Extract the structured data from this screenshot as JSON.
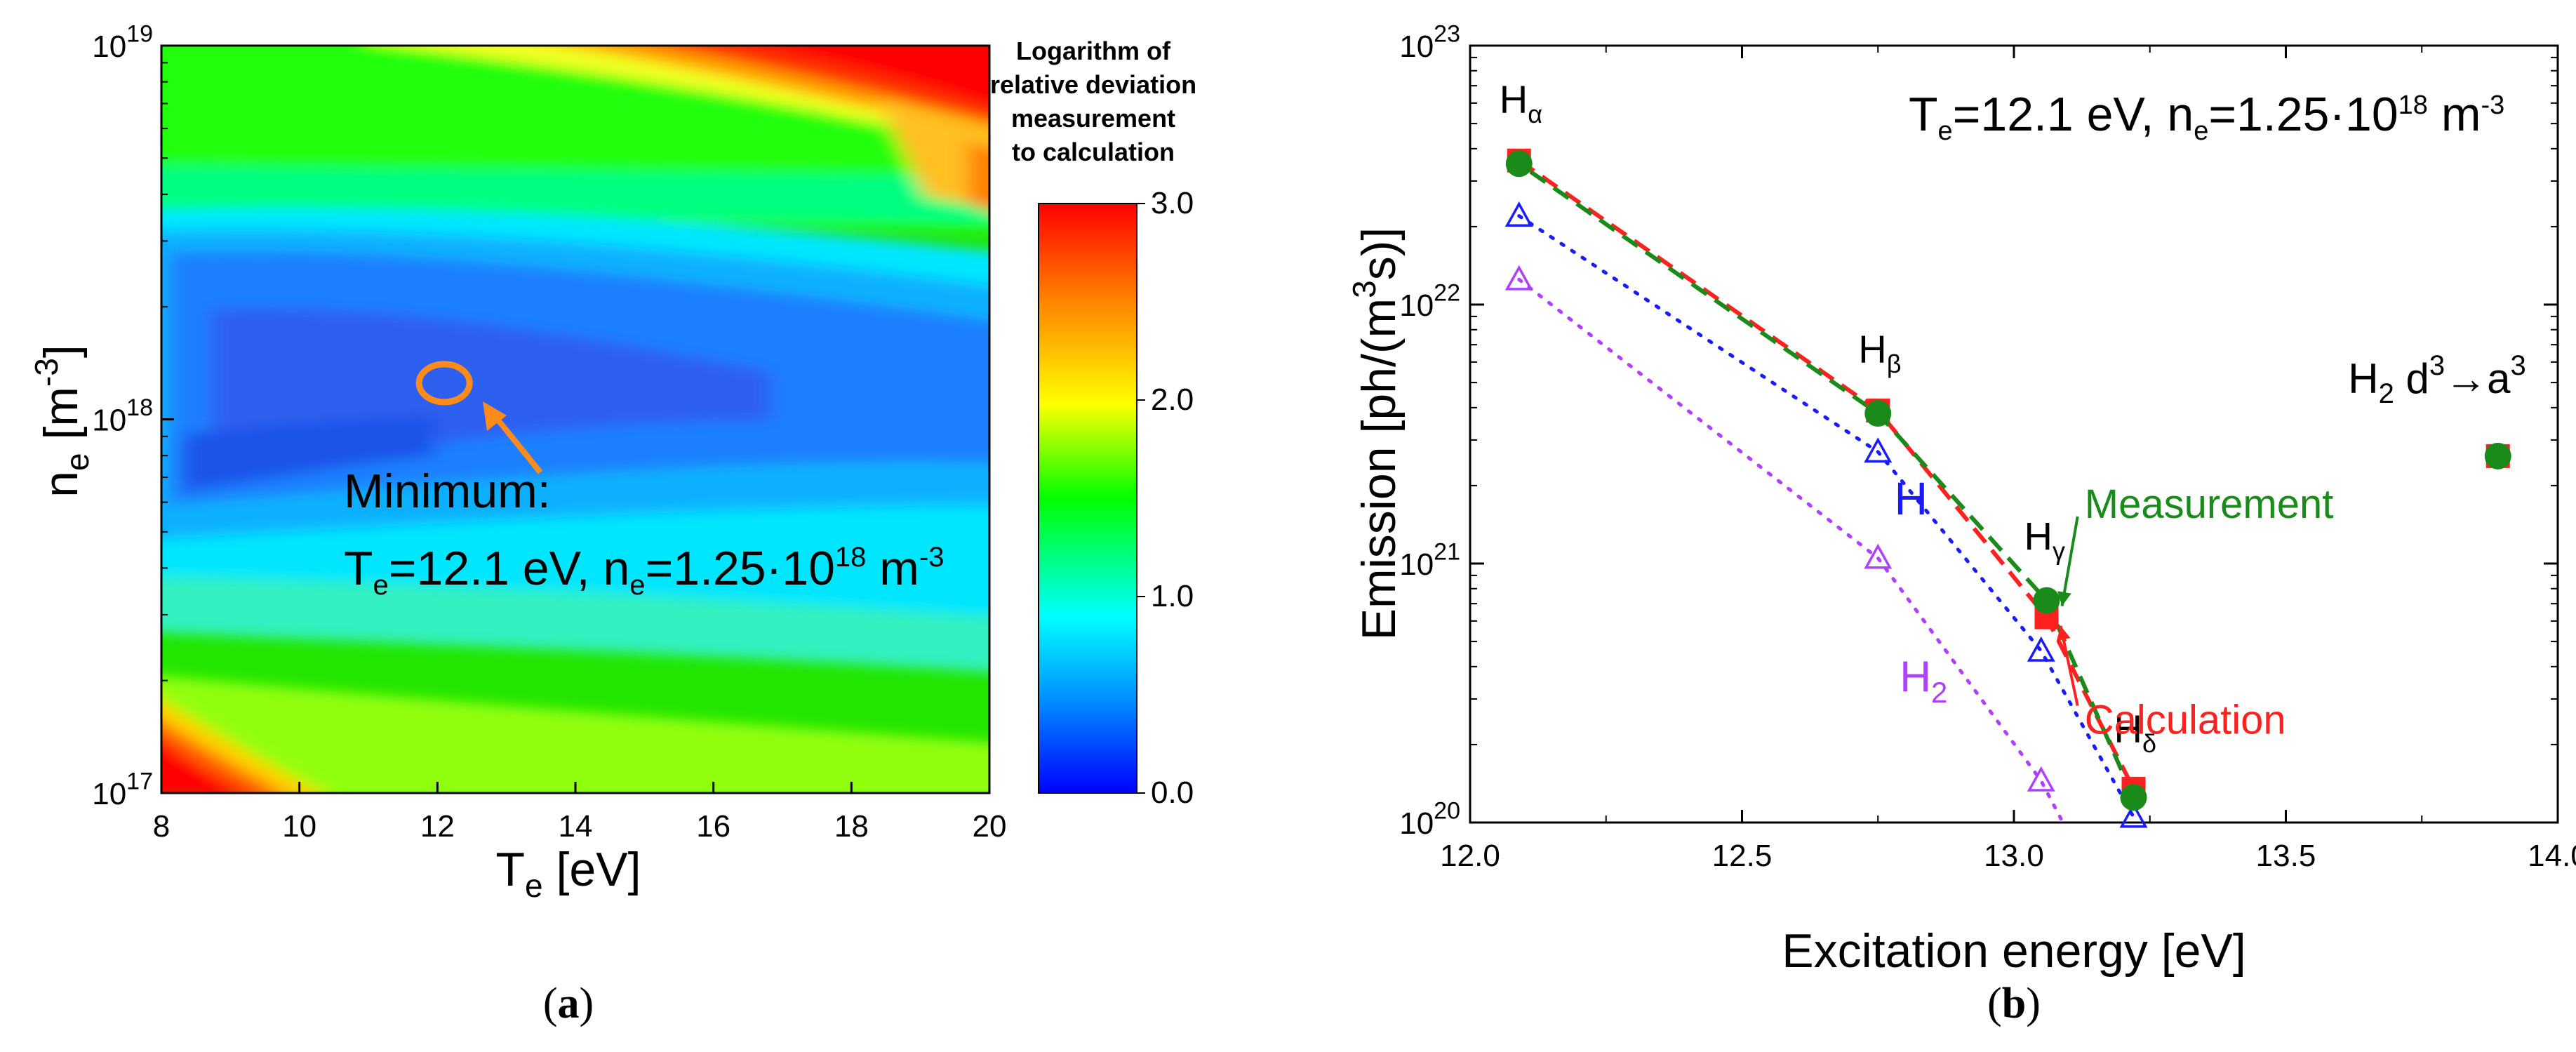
{
  "chart_data": [
    {
      "type": "heatmap",
      "panel_label": {
        "open": "(",
        "letter": "a",
        "close": ")"
      },
      "xlabel": {
        "main": "T",
        "sub": "e",
        "rest": " [eV]"
      },
      "ylabel": {
        "main": "n",
        "sub": "e",
        "rest": " [m",
        "sup": "-3",
        "end": "]"
      },
      "xlim": [
        8,
        20
      ],
      "ylim": [
        1e+17,
        1e+19
      ],
      "yscale": "log",
      "x_ticks": [
        "8",
        "10",
        "12",
        "14",
        "16",
        "18",
        "20"
      ],
      "y_ticks": [
        {
          "base": "10",
          "exp": "17"
        },
        {
          "base": "10",
          "exp": "18"
        },
        {
          "base": "10",
          "exp": "19"
        }
      ],
      "colorbar": {
        "title_lines": [
          "Logarithm of",
          "relative deviation",
          "measurement",
          "to calculation"
        ],
        "range": [
          0.0,
          3.0
        ],
        "ticks": [
          "0.0",
          "1.0",
          "2.0",
          "3.0"
        ],
        "stops": [
          "#0000ff",
          "#0090ff",
          "#00ffff",
          "#00ff00",
          "#ffff00",
          "#ff8000",
          "#ff0000"
        ]
      },
      "minimum": {
        "Te_eV": 12.1,
        "ne_m3": 1.25e+18
      },
      "annotation": {
        "line1": "Minimum:",
        "T": "T",
        "T_sub": "e",
        "T_value": "=12.1 eV, ",
        "n": "n",
        "n_sub": "e",
        "n_value": "=1.25·10",
        "n_exp": "18",
        "n_unit": " m",
        "n_unit_exp": "-3"
      }
    },
    {
      "type": "scatter",
      "panel_label": {
        "open": "(",
        "letter": "b",
        "close": ")"
      },
      "xlabel": "Excitation energy [eV]",
      "ylabel": {
        "main": "Emission [ph/(m",
        "sup": "3",
        "rest": "s)]"
      },
      "xlim": [
        12.0,
        14.0
      ],
      "ylim": [
        1e+20,
        1e+23
      ],
      "yscale": "log",
      "x_ticks": [
        "12.0",
        "12.5",
        "13.0",
        "13.5",
        "14.0"
      ],
      "y_ticks": [
        {
          "base": "10",
          "exp": "20"
        },
        {
          "base": "10",
          "exp": "21"
        },
        {
          "base": "10",
          "exp": "22"
        },
        {
          "base": "10",
          "exp": "23"
        }
      ],
      "condition": {
        "T": "T",
        "T_sub": "e",
        "T_value": "=12.1 eV, ",
        "n": "n",
        "n_sub": "e",
        "n_value": "=1.25·10",
        "n_exp": "18",
        "n_unit": " m",
        "n_unit_exp": "-3"
      },
      "series": [
        {
          "name": "Measurement",
          "color": "#1a8a1a",
          "x": [
            12.09,
            12.75,
            13.06,
            13.22,
            13.89
          ],
          "y": [
            3.5e+22,
            3.8e+21,
            7.2e+20,
            1.25e+20,
            2.6e+21
          ]
        },
        {
          "name": "Calculation",
          "color": "#ff2020",
          "x": [
            12.09,
            12.75,
            13.06,
            13.22,
            13.89
          ],
          "y": [
            3.6e+22,
            3.9e+21,
            6.2e+20,
            1.35e+20,
            2.6e+21
          ]
        },
        {
          "name": "H",
          "color": "#1a1aff",
          "x": [
            12.09,
            12.75,
            13.05,
            13.22
          ],
          "y": [
            2.2e+22,
            2.7e+21,
            4.6e+20,
            1.05e+20
          ]
        },
        {
          "name": "H2",
          "color": "#b040ff",
          "x": [
            12.09,
            12.75,
            13.05
          ],
          "y": [
            1.25e+22,
            1.05e+21,
            1.45e+20
          ]
        }
      ],
      "line_labels": [
        {
          "text": "H",
          "sub": "",
          "color": "#1a1aff"
        },
        {
          "text": "H",
          "sub": "2",
          "color": "#b040ff"
        }
      ],
      "series_labels": [
        {
          "text": "Measurement",
          "color": "#1a8a1a"
        },
        {
          "text": "Calculation",
          "color": "#ff2020"
        }
      ],
      "transitions": [
        {
          "name": "H",
          "sub": "α",
          "x": 12.09
        },
        {
          "name": "H",
          "sub": "β",
          "x": 12.75
        },
        {
          "name": "H",
          "sub": "γ",
          "x": 13.06
        },
        {
          "name": "H",
          "sub": "δ",
          "x": 13.22
        }
      ],
      "molecular": {
        "name": "H",
        "sub": "2",
        "lower": " d",
        "sup1": "3",
        "arrow": "→a",
        "sup2": "3",
        "x": 13.89
      }
    }
  ]
}
